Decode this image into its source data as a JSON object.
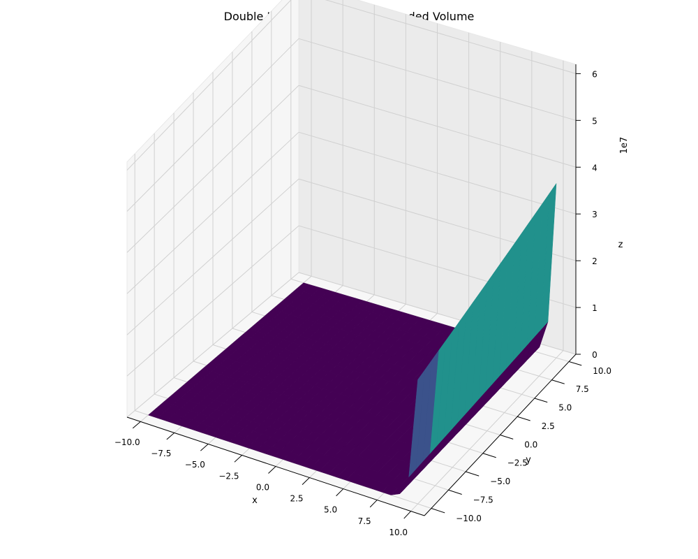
{
  "chart_data": {
    "type": "surface3d",
    "title": "Double Integral Surface with Shaded Volume",
    "xlabel": "x",
    "ylabel": "y",
    "zlabel": "z",
    "z_offset_label": "1e7",
    "xlim": [
      -10,
      10
    ],
    "ylim": [
      -10,
      10
    ],
    "zlim": [
      0,
      60000000
    ],
    "x_ticks": [
      -10,
      -7.5,
      -5,
      -2.5,
      0,
      2.5,
      5,
      7.5,
      10
    ],
    "x_tick_labels": [
      "−10.0",
      "−7.5",
      "−5.0",
      "−2.5",
      "0.0",
      "2.5",
      "5.0",
      "7.5",
      "10.0"
    ],
    "y_ticks": [
      -10,
      -7.5,
      -5,
      -2.5,
      0,
      2.5,
      5,
      7.5,
      10
    ],
    "y_tick_labels": [
      "−10.0",
      "−7.5",
      "−5.0",
      "−2.5",
      "0.0",
      "2.5",
      "5.0",
      "7.5",
      "10.0"
    ],
    "z_ticks": [
      0,
      10000000,
      20000000,
      30000000,
      40000000,
      50000000,
      60000000
    ],
    "z_tick_labels": [
      "0",
      "1",
      "2",
      "3",
      "4",
      "5",
      "6"
    ],
    "surface": {
      "description_of_shape": "z ≈ 0 over most of the domain, rising steeply near x = 10",
      "profile_x": [
        8.0,
        8.5,
        9.0,
        9.3,
        9.6,
        9.8,
        10.0
      ],
      "profile_z": [
        0,
        500000,
        2000000,
        5000000,
        12000000,
        22000000,
        30000000
      ],
      "peak": {
        "x": 10,
        "y": 10,
        "z": 37000000
      }
    },
    "colormap": "viridis",
    "colormap_colors": [
      "#440154",
      "#3b528b",
      "#21918c",
      "#5ec962",
      "#fde725"
    ],
    "grid": true
  }
}
